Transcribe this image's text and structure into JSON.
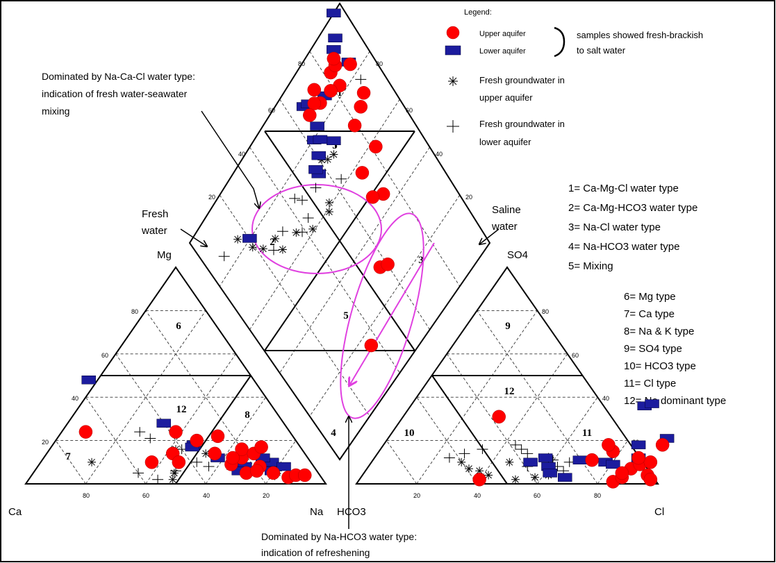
{
  "chart_data": {
    "type": "scatter",
    "title": "",
    "legend": {
      "title": "Legend:",
      "upper": "Upper aquifer",
      "lower": "Lower aquifer",
      "group_note_1": "samples showed fresh-brackish",
      "group_note_2": "to salt water",
      "fresh_upper_1": "Fresh groundwater in",
      "fresh_upper_2": "upper aquifer",
      "fresh_lower_1": "Fresh groundwater in",
      "fresh_lower_2": "lower aquifer",
      "placement": "top-right"
    },
    "axes": {
      "ca": "Ca",
      "mg": "Mg",
      "na": "Na",
      "hco3": "HCO3",
      "so4": "SO4",
      "cl": "Cl"
    },
    "ticks": [
      "20",
      "40",
      "60",
      "80"
    ],
    "zones": {
      "z1": "1",
      "z2": "2",
      "z3": "3",
      "z4": "4",
      "z5a": "5",
      "z5b": "5",
      "z6": "6",
      "z7": "7",
      "z8": "8",
      "z9": "9",
      "z10": "10",
      "z11": "11",
      "z12a": "12",
      "z12b": "12"
    },
    "water_types": [
      "1= Ca-Mg-Cl water type",
      "2= Ca-Mg-HCO3 water type",
      "3= Na-Cl water type",
      "4= Na-HCO3 water type",
      "5= Mixing",
      "6= Mg type",
      "7= Ca type",
      "8= Na & K type",
      "9= SO4 type",
      "10= HCO3 type",
      "11= Cl type",
      "12= No dominant type"
    ],
    "annotations": {
      "na_ca_cl_1": "Dominated by Na-Ca-Cl water type:",
      "na_ca_cl_2": "indication of fresh water-seawater",
      "na_ca_cl_3": "mixing",
      "na_hco3_1": "Dominated by Na-HCO3 water type:",
      "na_hco3_2": "indication of refreshening",
      "fresh_1": "Fresh",
      "fresh_2": "water",
      "saline_1": "Saline",
      "saline_2": "water"
    },
    "series": [
      {
        "name": "Upper aquifer",
        "marker": "circle",
        "cation": [
          [
            68,
            24
          ],
          [
            53,
            10
          ],
          [
            44,
            14
          ],
          [
            44,
            10
          ],
          [
            38,
            24
          ],
          [
            33,
            20
          ],
          [
            30,
            14
          ],
          [
            27,
            9
          ],
          [
            24,
            5
          ],
          [
            22,
            12
          ],
          [
            20,
            16
          ],
          [
            18,
            8
          ],
          [
            15,
            5
          ],
          [
            11,
            3
          ],
          [
            8,
            4
          ],
          [
            5,
            4
          ],
          [
            17,
            14
          ],
          [
            20,
            6
          ],
          [
            25,
            12
          ],
          [
            25,
            22
          ],
          [
            13,
            17
          ]
        ],
        "anion": [
          [
            40,
            2
          ],
          [
            32,
            31
          ],
          [
            85,
            1
          ],
          [
            87,
            3
          ],
          [
            88,
            7
          ],
          [
            90,
            9
          ],
          [
            93,
            10
          ],
          [
            95,
            4
          ],
          [
            97,
            2
          ],
          [
            88,
            12
          ],
          [
            86,
            5
          ],
          [
            73,
            11
          ],
          [
            78,
            15
          ],
          [
            75,
            18
          ],
          [
            93,
            18
          ]
        ],
        "diamond": [
          [
            86,
            35
          ],
          [
            72,
            55
          ],
          [
            74,
            58
          ],
          [
            57,
            72
          ],
          [
            54,
            68
          ],
          [
            45,
            70
          ],
          [
            44,
            80
          ],
          [
            32,
            78
          ],
          [
            30,
            84
          ],
          [
            28,
            88
          ],
          [
            17,
            90
          ],
          [
            18,
            82
          ],
          [
            16,
            78
          ],
          [
            12,
            82
          ],
          [
            12,
            85
          ],
          [
            10,
            86
          ],
          [
            15,
            72
          ],
          [
            13,
            70
          ],
          [
            14,
            66
          ],
          [
            10,
            73
          ]
        ]
      },
      {
        "name": "Lower aquifer",
        "marker": "rect",
        "cation": [
          [
            55,
            48
          ],
          [
            40,
            28
          ],
          [
            35,
            18
          ],
          [
            30,
            12
          ],
          [
            23,
            8
          ],
          [
            15,
            6
          ],
          [
            13,
            10
          ],
          [
            10,
            8
          ],
          [
            26,
            6
          ],
          [
            36,
            17
          ],
          [
            15,
            12
          ]
        ],
        "anion": [
          [
            53,
            10
          ],
          [
            57,
            12
          ],
          [
            60,
            8
          ],
          [
            69,
            11
          ],
          [
            78,
            10
          ],
          [
            81,
            9
          ],
          [
            68,
            3
          ],
          [
            62,
            5
          ],
          [
            85,
            18
          ],
          [
            88,
            12
          ],
          [
            93,
            21
          ],
          [
            78,
            36
          ],
          [
            80,
            37
          ]
        ],
        "diamond": [
          [
            0,
            96
          ],
          [
            6,
            91
          ],
          [
            8,
            88
          ],
          [
            15,
            75
          ],
          [
            10,
            66
          ],
          [
            19,
            66
          ],
          [
            26,
            60
          ],
          [
            28,
            68
          ],
          [
            21,
            62
          ],
          [
            23,
            64
          ],
          [
            30,
            56
          ],
          [
            28,
            56
          ],
          [
            16,
            90
          ],
          [
            11,
            68
          ],
          [
            20,
            20
          ]
        ]
      },
      {
        "name": "Fresh groundwater in upper aquifer",
        "marker": "star",
        "cation": [
          [
            73,
            10
          ],
          [
            50,
            2
          ],
          [
            48,
            5
          ],
          [
            42,
            16
          ],
          [
            33,
            14
          ],
          [
            28,
            8
          ],
          [
            21,
            6
          ],
          [
            13,
            6
          ]
        ],
        "anion": [
          [
            30,
            10
          ],
          [
            34,
            7
          ],
          [
            38,
            6
          ],
          [
            42,
            4
          ],
          [
            46,
            10
          ],
          [
            52,
            2
          ],
          [
            58,
            3
          ],
          [
            62,
            4
          ]
        ],
        "diamond": [
          [
            28,
            60
          ],
          [
            30,
            62
          ],
          [
            31,
            65
          ],
          [
            40,
            42
          ],
          [
            35,
            36
          ],
          [
            29,
            28
          ],
          [
            34,
            28
          ],
          [
            27,
            22
          ],
          [
            23,
            19
          ],
          [
            16,
            16
          ],
          [
            40,
            53
          ],
          [
            42,
            51
          ]
        ]
      },
      {
        "name": "Fresh groundwater in lower aquifer",
        "marker": "plus",
        "cation": [
          [
            60,
            5
          ],
          [
            55,
            2
          ],
          [
            47,
            6
          ],
          [
            44,
            12
          ],
          [
            38,
            10
          ],
          [
            35,
            8
          ],
          [
            24,
            8
          ],
          [
            19,
            6
          ],
          [
            15,
            4
          ],
          [
            50,
            24
          ],
          [
            48,
            21
          ],
          [
            40,
            16
          ]
        ],
        "anion": [
          [
            25,
            12
          ],
          [
            29,
            14
          ],
          [
            34,
            16
          ],
          [
            44,
            18
          ],
          [
            47,
            16
          ],
          [
            50,
            14
          ],
          [
            53,
            8
          ],
          [
            58,
            12
          ],
          [
            60,
            11
          ],
          [
            63,
            8
          ],
          [
            66,
            6
          ],
          [
            66,
            10
          ]
        ],
        "diamond": [
          [
            24,
            90
          ],
          [
            29,
            68
          ],
          [
            39,
            62
          ],
          [
            32,
            52
          ],
          [
            36,
            43
          ],
          [
            30,
            45
          ],
          [
            27,
            43
          ],
          [
            37,
            38
          ],
          [
            30,
            32
          ],
          [
            31,
            25
          ],
          [
            15,
            8
          ]
        ]
      }
    ]
  }
}
